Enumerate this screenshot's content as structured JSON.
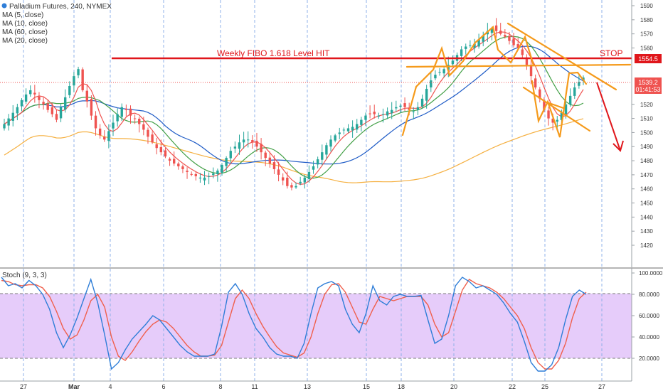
{
  "legend": {
    "title": "Palladium Futures, 240, NYMEX",
    "ma": [
      "MA (5, close)",
      "MA (10, close)",
      "MA (60, close)",
      "MA (20, close)"
    ],
    "stoch": "Stoch (9, 3, 3)"
  },
  "annotations": {
    "fibo": "Weekly FIBO 1.618 Level HIT",
    "stop": "STOP"
  },
  "badges": {
    "level": "1554.5",
    "price": "1539.2",
    "timer": "01:41:53"
  },
  "colors": {
    "up": "#26a69a",
    "down": "#ef5350",
    "ma5": "#ef5350",
    "ma10": "#43a047",
    "ma20": "#1e5bc6",
    "ma60": "#f5b041",
    "pattern": "#f59a1b",
    "level": "#e0161b",
    "stochK": "#2f7ed8",
    "stochD": "#f0604d",
    "stochBand": "#e6ccfa"
  },
  "chart_data": [
    {
      "type": "candlestick",
      "title": "Palladium Futures, 240, NYMEX",
      "ylim": [
        1415,
        1595
      ],
      "y_ticks": [
        1420,
        1430,
        1440,
        1450,
        1460,
        1470,
        1480,
        1490,
        1500,
        1510,
        1520,
        1530,
        1540,
        1550,
        1560,
        1570,
        1580,
        1590
      ],
      "x_ticks": [
        "27",
        "Mar",
        "4",
        "6",
        "8",
        "11",
        "13",
        "15",
        "18",
        "20",
        "22",
        "25",
        "27"
      ],
      "horizontal_level": 1554.5,
      "last_price": 1539.2,
      "close": [
        1506,
        1510,
        1514,
        1518,
        1523,
        1527,
        1530,
        1527,
        1523,
        1520,
        1516,
        1513,
        1509,
        1518,
        1525,
        1533,
        1540,
        1545,
        1530,
        1522,
        1512,
        1503,
        1498,
        1495,
        1501,
        1507,
        1513,
        1518,
        1516,
        1512,
        1510,
        1506,
        1502,
        1497,
        1493,
        1489,
        1486,
        1483,
        1480,
        1478,
        1476,
        1474,
        1472,
        1470,
        1469,
        1468,
        1468,
        1469,
        1471,
        1473,
        1477,
        1482,
        1487,
        1490,
        1493,
        1495,
        1495,
        1493,
        1490,
        1486,
        1482,
        1478,
        1474,
        1470,
        1466,
        1462,
        1461,
        1462,
        1465,
        1468,
        1472,
        1476,
        1481,
        1486,
        1491,
        1495,
        1498,
        1500,
        1502,
        1503,
        1504,
        1506,
        1509,
        1512,
        1513,
        1513,
        1512,
        1513,
        1515,
        1516,
        1518,
        1519,
        1518,
        1516,
        1515,
        1518,
        1524,
        1531,
        1537,
        1541,
        1543,
        1545,
        1548,
        1551,
        1555,
        1559,
        1561,
        1562,
        1563,
        1566,
        1569,
        1572,
        1574,
        1572,
        1570,
        1568,
        1565,
        1562,
        1560,
        1555,
        1548,
        1540,
        1532,
        1524,
        1516,
        1510,
        1507,
        1509,
        1514,
        1520,
        1526,
        1532,
        1536,
        1539
      ],
      "moving_averages": [
        "MA (5, close)",
        "MA (10, close)",
        "MA (60, close)",
        "MA (20, close)"
      ]
    },
    {
      "type": "line",
      "title": "Stoch (9, 3, 3)",
      "ylim": [
        0,
        100
      ],
      "y_ticks": [
        20,
        40,
        60,
        80,
        100
      ],
      "band": [
        20,
        80
      ],
      "series": [
        {
          "name": "%K",
          "values": [
            96,
            88,
            90,
            86,
            93,
            88,
            80,
            66,
            44,
            30,
            42,
            58,
            76,
            94,
            72,
            42,
            10,
            16,
            28,
            38,
            45,
            52,
            60,
            56,
            48,
            40,
            32,
            26,
            22,
            22,
            22,
            24,
            50,
            82,
            90,
            80,
            62,
            48,
            40,
            30,
            24,
            22,
            22,
            20,
            34,
            62,
            86,
            90,
            92,
            88,
            66,
            52,
            44,
            62,
            88,
            74,
            70,
            78,
            80,
            78,
            78,
            79,
            56,
            34,
            38,
            60,
            88,
            96,
            92,
            86,
            88,
            84,
            80,
            72,
            62,
            54,
            36,
            16,
            8,
            8,
            14,
            30,
            56,
            78,
            84,
            80
          ]
        },
        {
          "name": "%D",
          "values": [
            93,
            92,
            89,
            88,
            89,
            89,
            86,
            78,
            64,
            48,
            38,
            42,
            56,
            74,
            80,
            68,
            40,
            22,
            18,
            26,
            36,
            45,
            52,
            56,
            54,
            48,
            40,
            32,
            26,
            22,
            22,
            23,
            32,
            54,
            76,
            84,
            76,
            62,
            50,
            40,
            31,
            25,
            23,
            21,
            25,
            40,
            62,
            80,
            89,
            90,
            82,
            68,
            54,
            52,
            66,
            78,
            76,
            74,
            76,
            78,
            78,
            78,
            70,
            52,
            40,
            44,
            64,
            84,
            94,
            90,
            88,
            86,
            82,
            76,
            68,
            60,
            48,
            30,
            16,
            10,
            10,
            18,
            34,
            58,
            76,
            82
          ]
        }
      ]
    }
  ]
}
